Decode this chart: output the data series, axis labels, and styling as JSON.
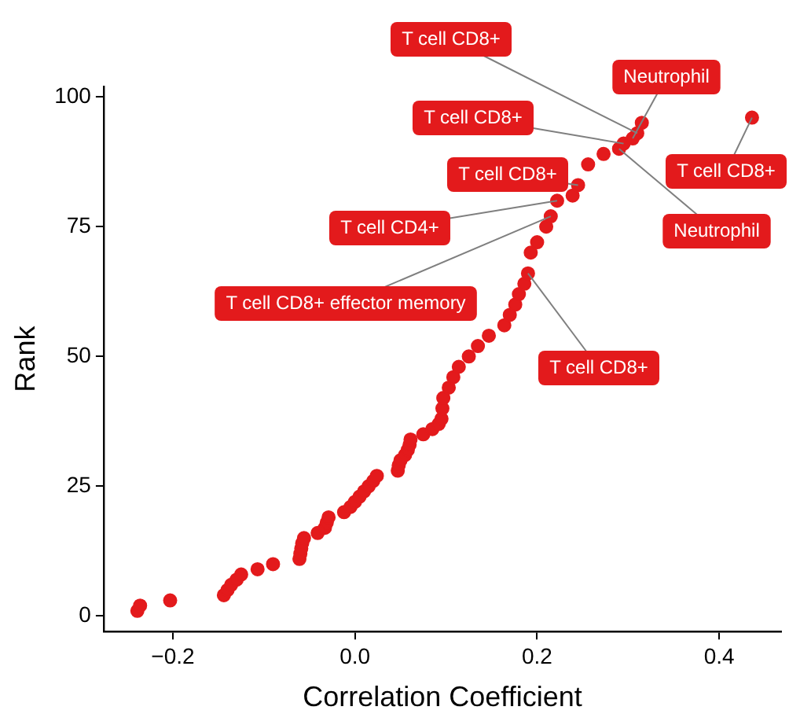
{
  "chart_data": {
    "type": "scatter",
    "xlabel": "Correlation Coefficient",
    "ylabel": "Rank",
    "xlim": [
      -0.276,
      0.468
    ],
    "ylim": [
      -3,
      102
    ],
    "xticks": [
      {
        "value": -0.2,
        "label": "−0.2"
      },
      {
        "value": 0,
        "label": "0.0"
      },
      {
        "value": 0.2,
        "label": "0.2"
      },
      {
        "value": 0.4,
        "label": "0.4"
      }
    ],
    "yticks": [
      0,
      25,
      50,
      75,
      100
    ],
    "grid": false,
    "legend": false,
    "marker": "circle",
    "series": [
      {
        "color": "#e31a1c",
        "x": [
          -0.239,
          -0.236,
          -0.203,
          -0.144,
          -0.14,
          -0.136,
          -0.13,
          -0.125,
          -0.107,
          -0.09,
          -0.061,
          -0.06,
          -0.059,
          -0.058,
          -0.056,
          -0.041,
          -0.033,
          -0.031,
          -0.029,
          -0.012,
          -0.005,
          0.0,
          0.005,
          0.01,
          0.015,
          0.02,
          0.024,
          0.047,
          0.048,
          0.05,
          0.055,
          0.058,
          0.06,
          0.061,
          0.075,
          0.085,
          0.092,
          0.095,
          0.096,
          0.097,
          0.103,
          0.108,
          0.114,
          0.125,
          0.135,
          0.147,
          0.164,
          0.17,
          0.176,
          0.18,
          0.186,
          0.19,
          0.193,
          0.2,
          0.21,
          0.215,
          0.222,
          0.239,
          0.245,
          0.256,
          0.273,
          0.29,
          0.295,
          0.305,
          0.31,
          0.315,
          0.436
        ],
        "values": [
          1,
          2,
          3,
          4,
          5,
          6,
          7,
          8,
          9,
          10,
          11,
          12,
          13,
          14,
          15,
          16,
          17,
          18,
          19,
          20,
          21,
          22,
          23,
          24,
          25,
          26,
          27,
          28,
          29,
          30,
          31,
          32,
          33,
          34,
          35,
          36,
          37,
          38,
          40,
          42,
          44,
          46,
          48,
          50,
          52,
          54,
          56,
          58,
          60,
          62,
          64,
          66,
          70,
          72,
          75,
          77,
          80,
          81,
          83,
          87,
          89,
          90,
          91,
          92,
          93,
          95,
          96
        ]
      }
    ],
    "annotations": [
      {
        "text": "T cell CD8+",
        "x": 0.31,
        "y": 93
      },
      {
        "text": "Neutrophil",
        "x": 0.305,
        "y": 92
      },
      {
        "text": "T cell CD8+",
        "x": 0.295,
        "y": 91
      },
      {
        "text": "T cell CD8+",
        "x": 0.245,
        "y": 83
      },
      {
        "text": "T cell CD4+",
        "x": 0.222,
        "y": 80
      },
      {
        "text": "T cell CD8+ effector memory",
        "x": 0.215,
        "y": 77
      },
      {
        "text": "T cell CD8+",
        "x": 0.19,
        "y": 66
      },
      {
        "text": "Neutrophil",
        "x": 0.29,
        "y": 90
      },
      {
        "text": "T cell CD8+",
        "x": 0.436,
        "y": 96
      }
    ]
  }
}
